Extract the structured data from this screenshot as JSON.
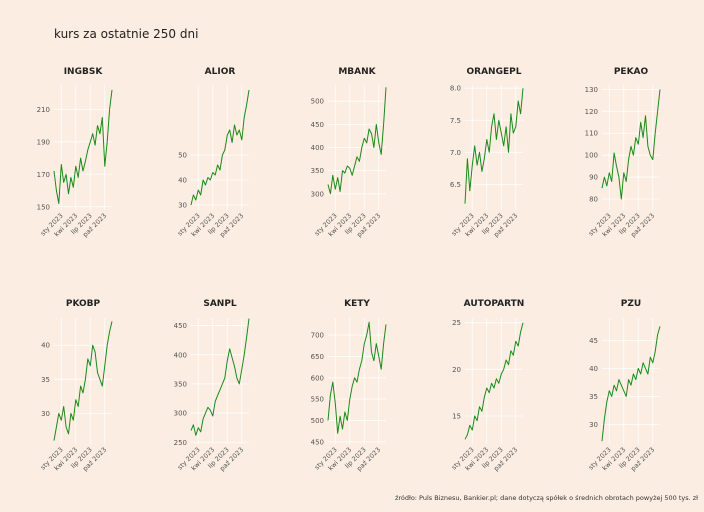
{
  "title": "kurs za ostatnie 250 dni",
  "caption": "źródło: Puls Biznesu, Bankier.pl; dane dotyczą spółek o średnich obrotach powyżej 500 tys. zł",
  "colors": {
    "background": "#fbede1",
    "line": "#1a8a1a",
    "grid": "#ffffff"
  },
  "chart_data": [
    {
      "type": "line",
      "title": "INGBSK",
      "ylim": [
        148,
        225
      ],
      "yticks": [
        150,
        170,
        190,
        210
      ],
      "xticks": [
        "sty 2023",
        "kwi 2023",
        "lip 2023",
        "paź 2023"
      ],
      "series": [
        {
          "values": [
            172,
            160,
            152,
            176,
            165,
            170,
            158,
            168,
            162,
            175,
            168,
            180,
            172,
            178,
            185,
            190,
            195,
            188,
            200,
            195,
            205,
            175,
            190,
            210,
            222
          ]
        }
      ]
    },
    {
      "type": "line",
      "title": "ALIOR",
      "ylim": [
        28,
        78
      ],
      "yticks": [
        30,
        40,
        50
      ],
      "xticks": [
        "sty 2023",
        "kwi 2023",
        "lip 2023",
        "paź 2023"
      ],
      "series": [
        {
          "values": [
            30,
            34,
            32,
            36,
            34,
            40,
            38,
            41,
            40,
            43,
            42,
            46,
            44,
            50,
            52,
            58,
            60,
            55,
            62,
            58,
            60,
            56,
            65,
            70,
            76
          ]
        }
      ]
    },
    {
      "type": "line",
      "title": "MBANK",
      "ylim": [
        265,
        535
      ],
      "yticks": [
        300,
        350,
        400,
        450,
        500
      ],
      "xticks": [
        "sty 2023",
        "kwi 2023",
        "lip 2023",
        "paź 2023"
      ],
      "series": [
        {
          "values": [
            320,
            300,
            340,
            310,
            335,
            305,
            350,
            345,
            360,
            355,
            340,
            360,
            380,
            370,
            400,
            420,
            410,
            440,
            430,
            400,
            450,
            410,
            385,
            450,
            530
          ]
        }
      ]
    },
    {
      "type": "line",
      "title": "ORANGEPL",
      "ylim": [
        6.1,
        8.05
      ],
      "yticks": [
        6.5,
        7.0,
        7.5,
        8.0
      ],
      "xticks": [
        "sty 2023",
        "kwi 2023",
        "lip 2023",
        "paź 2023"
      ],
      "series": [
        {
          "values": [
            6.2,
            6.9,
            6.4,
            6.8,
            7.1,
            6.8,
            7.0,
            6.7,
            6.9,
            7.2,
            7.0,
            7.4,
            7.6,
            7.2,
            7.5,
            7.3,
            7.1,
            7.4,
            7.0,
            7.6,
            7.3,
            7.4,
            7.8,
            7.6,
            8.0
          ]
        }
      ]
    },
    {
      "type": "line",
      "title": "PEKAO",
      "ylim": [
        75,
        132
      ],
      "yticks": [
        80,
        90,
        100,
        110,
        120,
        130
      ],
      "xticks": [
        "sty 2023",
        "kwi 2023",
        "lip 2023",
        "paź 2023"
      ],
      "series": [
        {
          "values": [
            85,
            90,
            86,
            92,
            88,
            101,
            95,
            90,
            80,
            92,
            88,
            98,
            104,
            100,
            108,
            105,
            115,
            108,
            118,
            104,
            100,
            98,
            110,
            120,
            130
          ]
        }
      ]
    },
    {
      "type": "line",
      "title": "PKOBP",
      "ylim": [
        25.5,
        44
      ],
      "yticks": [
        30,
        35,
        40
      ],
      "xticks": [
        "sty 2023",
        "kwi 2023",
        "lip 2023",
        "paź 2023"
      ],
      "series": [
        {
          "values": [
            26,
            28,
            30,
            29,
            31,
            28,
            27,
            30,
            29,
            32,
            31,
            34,
            33,
            35,
            38,
            37,
            40,
            39,
            36,
            35,
            34,
            37,
            40,
            42,
            43.5
          ]
        }
      ]
    },
    {
      "type": "line",
      "title": "SANPL",
      "ylim": [
        247,
        463
      ],
      "yticks": [
        250,
        300,
        350,
        400,
        450
      ],
      "xticks": [
        "sty 2023",
        "kwi 2023",
        "lip 2023",
        "paź 2023"
      ],
      "series": [
        {
          "values": [
            270,
            280,
            262,
            275,
            268,
            290,
            300,
            310,
            305,
            295,
            320,
            330,
            340,
            350,
            360,
            390,
            410,
            395,
            380,
            360,
            350,
            375,
            400,
            430,
            462
          ]
        }
      ]
    },
    {
      "type": "line",
      "title": "KETY",
      "ylim": [
        445,
        740
      ],
      "yticks": [
        450,
        500,
        550,
        600,
        650,
        700
      ],
      "xticks": [
        "sty 2023",
        "kwi 2023",
        "lip 2023",
        "paź 2023"
      ],
      "series": [
        {
          "values": [
            500,
            560,
            590,
            540,
            470,
            510,
            480,
            520,
            500,
            550,
            580,
            600,
            590,
            620,
            640,
            680,
            700,
            730,
            660,
            640,
            680,
            650,
            620,
            680,
            725
          ]
        }
      ]
    },
    {
      "type": "line",
      "title": "AUTOPARTN",
      "ylim": [
        12,
        25.5
      ],
      "yticks": [
        15,
        20,
        25
      ],
      "xticks": [
        "sty 2023",
        "kwi 2023",
        "lip 2023",
        "paź 2023"
      ],
      "series": [
        {
          "values": [
            12.5,
            13,
            14,
            13.5,
            15,
            14.5,
            16,
            15.5,
            17,
            18,
            17.5,
            18.5,
            18,
            19,
            18.5,
            19.5,
            20,
            21,
            20.5,
            22,
            21.5,
            23,
            22.5,
            24,
            25
          ]
        }
      ]
    },
    {
      "type": "line",
      "title": "PZU",
      "ylim": [
        26.5,
        49
      ],
      "yticks": [
        30,
        35,
        40,
        45
      ],
      "xticks": [
        "sty 2023",
        "kwi 2023",
        "lip 2023",
        "paź 2023"
      ],
      "series": [
        {
          "values": [
            27,
            31,
            34,
            36,
            35,
            37,
            36,
            38,
            37,
            36,
            35,
            38,
            37,
            39,
            38,
            40,
            39,
            41,
            40,
            39,
            42,
            41,
            43,
            46,
            47.5
          ]
        }
      ]
    }
  ]
}
